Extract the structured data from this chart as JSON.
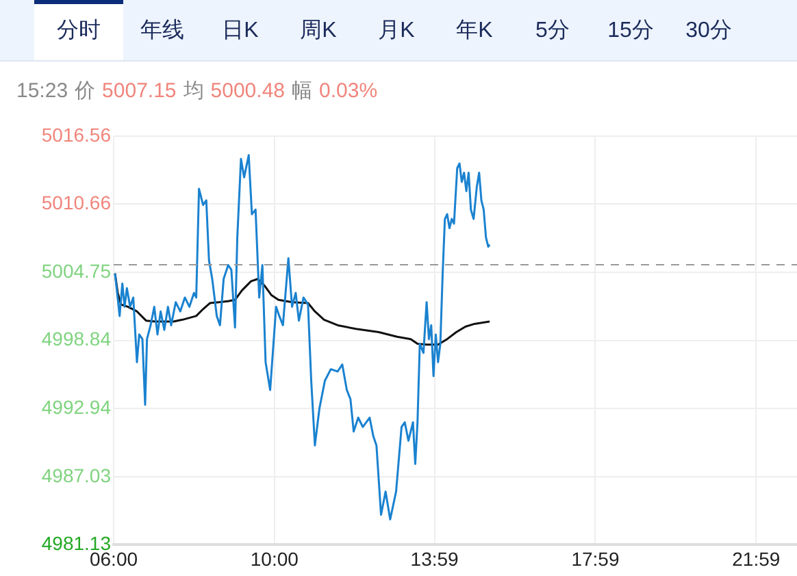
{
  "chart_data": {
    "type": "line",
    "subtitle": "15:23 价 5007.15 均 5000.48 幅 0.03%",
    "annotations": [
      "分时",
      "年线",
      "日K",
      "周K",
      "月K",
      "年K",
      "5分",
      "15分",
      "30分"
    ],
    "xlim": [
      6,
      23
    ],
    "xticks": [
      {
        "value": 6,
        "label": "06:00"
      },
      {
        "value": 10,
        "label": "10:00"
      },
      {
        "value": 13.983,
        "label": "13:59"
      },
      {
        "value": 17.983,
        "label": "17:59"
      },
      {
        "value": 21.983,
        "label": "21:59"
      }
    ],
    "ylim": [
      4981.13,
      5016.56
    ],
    "yticks": [
      4981.13,
      4987.03,
      4992.94,
      4998.84,
      5004.75,
      5010.66,
      5016.56
    ],
    "grid": true,
    "legend": false,
    "marker": "none",
    "line_style": "solid",
    "ref_lines": [
      {
        "axis": "y",
        "value": 5005.4,
        "color": "#999999",
        "line_style": "dashed"
      }
    ],
    "series": [
      {
        "color": "#1a82d0",
        "x": [
          6.034,
          6.148,
          6.216,
          6.272,
          6.329,
          6.409,
          6.488,
          6.579,
          6.636,
          6.715,
          6.783,
          6.829,
          6.919,
          7.01,
          7.09,
          7.169,
          7.26,
          7.351,
          7.43,
          7.544,
          7.657,
          7.771,
          7.884,
          7.998,
          8.054,
          8.123,
          8.225,
          8.304,
          8.372,
          8.452,
          8.565,
          8.645,
          8.736,
          8.849,
          8.928,
          9.019,
          9.076,
          9.167,
          9.246,
          9.36,
          9.439,
          9.53,
          9.621,
          9.7,
          9.78,
          9.893,
          9.984,
          10.041,
          10.12,
          10.211,
          10.347,
          10.438,
          10.529,
          10.608,
          10.722,
          10.835,
          10.915,
          11.006,
          11.119,
          11.255,
          11.403,
          11.573,
          11.687,
          11.8,
          11.891,
          11.971,
          12.084,
          12.198,
          12.368,
          12.459,
          12.538,
          12.652,
          12.765,
          12.879,
          13.026,
          13.162,
          13.242,
          13.333,
          13.446,
          13.503,
          13.559,
          13.616,
          13.707,
          13.786,
          13.843,
          13.9,
          13.957,
          14.013,
          14.07,
          14.127,
          14.184,
          14.24,
          14.297,
          14.354,
          14.411,
          14.467,
          14.547,
          14.604,
          14.66,
          14.717,
          14.774,
          14.831,
          14.887,
          14.955,
          15.035,
          15.092,
          15.148,
          15.205,
          15.262,
          15.319,
          15.353
        ],
        "values": [
          5004.65,
          5000.96,
          5003.77,
          5001.76,
          5003.37,
          5001.76,
          5002.56,
          4996.96,
          4999.36,
          4998.96,
          4993.27,
          4998.96,
          5000.16,
          5001.76,
          4999.36,
          5001.36,
          4999.76,
          5001.76,
          5000.16,
          5002.16,
          5001.36,
          5002.56,
          5001.76,
          5002.96,
          5002.56,
          5011.98,
          5010.58,
          5010.98,
          5005.77,
          5004.17,
          5000.96,
          5000.16,
          5004.17,
          5005.37,
          5004.97,
          4999.96,
          5007.77,
          5014.58,
          5012.98,
          5014.9,
          5009.78,
          5010.18,
          5002.56,
          5005.37,
          4996.96,
          4994.55,
          4998.96,
          5001.76,
          5000.96,
          5000.16,
          5005.97,
          5001.76,
          5002.96,
          5000.56,
          5002.56,
          5001.96,
          4995.35,
          4989.74,
          4992.95,
          4995.35,
          4996.35,
          4996.15,
          4996.76,
          4994.55,
          4993.75,
          4990.95,
          4992.15,
          4991.35,
          4992.15,
          4990.55,
          4989.74,
          4983.73,
          4985.74,
          4983.33,
          4985.74,
          4991.35,
          4991.75,
          4990.15,
          4991.75,
          4988.14,
          4991.75,
          4998.56,
          4997.76,
          5002.16,
          4998.96,
          5000.16,
          4995.75,
          4999.36,
          4996.96,
          4998.56,
          5004.57,
          5009.37,
          5009.78,
          5008.57,
          5009.37,
          5008.97,
          5013.78,
          5014.18,
          5012.58,
          5013.38,
          5011.78,
          5013.38,
          5010.18,
          5009.37,
          5012.18,
          5013.38,
          5010.98,
          5010.18,
          5007.77,
          5006.97,
          5007.15
        ]
      },
      {
        "color": "#111111",
        "x": [
          6.034,
          6.102,
          6.182,
          6.352,
          6.579,
          6.806,
          7.033,
          7.487,
          7.714,
          8.054,
          8.225,
          8.395,
          8.622,
          8.849,
          9.019,
          9.19,
          9.417,
          9.587,
          9.757,
          9.927,
          10.098,
          10.438,
          10.835,
          11.006,
          11.233,
          11.573,
          12.027,
          12.595,
          13.049,
          13.389,
          13.559,
          13.786,
          14.07,
          14.297,
          14.524,
          14.751,
          14.978,
          15.353
        ],
        "values": [
          5004.65,
          5002.96,
          5001.96,
          5001.76,
          5001.36,
          5000.56,
          5000.48,
          5000.48,
          5000.64,
          5000.96,
          5001.56,
          5002.08,
          5002.16,
          5002.24,
          5002.36,
          5003.17,
          5003.97,
          5004.17,
          5003.57,
          5002.76,
          5002.36,
          5002.16,
          5002.08,
          5001.36,
          5000.64,
          5000.16,
          4999.84,
          4999.56,
          4999.16,
          4998.96,
          4998.56,
          4998.48,
          4998.48,
          4998.96,
          4999.56,
          5000.04,
          5000.28,
          5000.48
        ]
      }
    ]
  }
}
